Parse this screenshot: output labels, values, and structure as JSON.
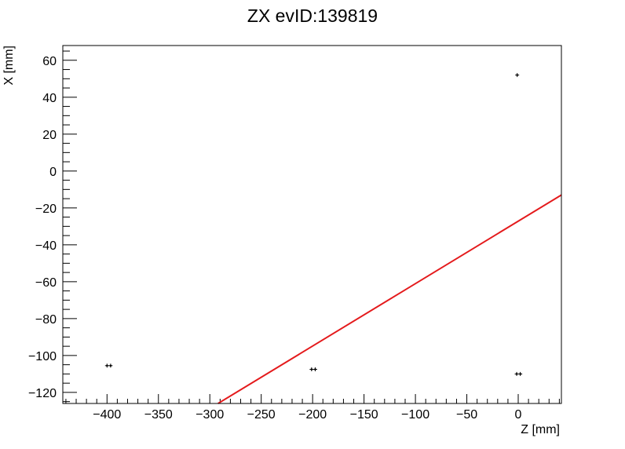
{
  "chart_data": {
    "type": "scatter",
    "title": "ZX evID:139819",
    "xlabel": "Z [mm]",
    "ylabel": "X [mm]",
    "xlim": [
      -443,
      42
    ],
    "ylim": [
      -126,
      68
    ],
    "x_ticks": [
      -400,
      -350,
      -300,
      -250,
      -200,
      -150,
      -100,
      -50,
      0
    ],
    "y_ticks": [
      -120,
      -100,
      -80,
      -60,
      -40,
      -20,
      0,
      20,
      40,
      60
    ],
    "grid": false,
    "points": [
      {
        "x": -400,
        "y": -105.5
      },
      {
        "x": -396.5,
        "y": -105.5
      },
      {
        "x": -201,
        "y": -107.5
      },
      {
        "x": -197.5,
        "y": -107.5
      },
      {
        "x": -1,
        "y": 52
      },
      {
        "x": -1.5,
        "y": -110
      },
      {
        "x": 2,
        "y": -110
      }
    ],
    "fit_line": {
      "color": "#e41a1c",
      "from": {
        "x": -292,
        "y": -126
      },
      "to": {
        "x": 42,
        "y": -13
      }
    }
  }
}
